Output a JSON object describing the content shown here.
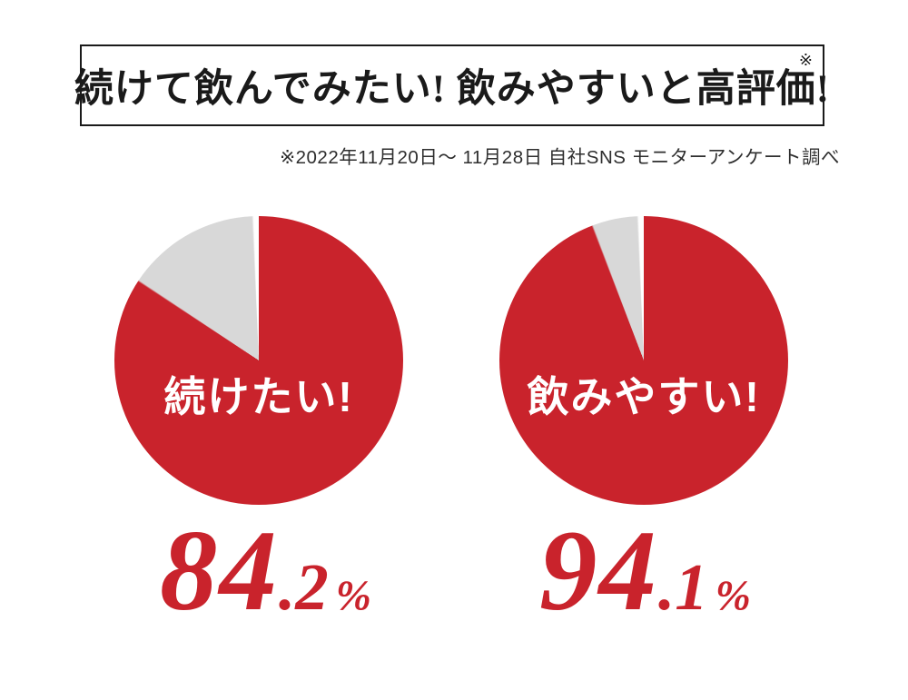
{
  "header": {
    "title": "続けて飲んでみたい! 飲みやすいと高評価!",
    "note_mark": "※",
    "subtitle": "※2022年11月20日〜 11月28日 自社SNS モニターアンケート調べ"
  },
  "colors": {
    "accent_red": "#c9232c",
    "pie_gray": "#d8d8d8",
    "ink": "#1a1a1a",
    "background": "#ffffff"
  },
  "chart_data": [
    {
      "type": "pie",
      "title": "続けたい!",
      "center_label": "続けたい!",
      "value_pct": 84.2,
      "value_text": {
        "integer": "84",
        "decimal": ".2",
        "unit": "%"
      },
      "start": "top",
      "direction": "clockwise",
      "slices": [
        {
          "name": "続けたい!",
          "pct": 84.2,
          "color": "#c9232c"
        },
        {
          "name": "remainder",
          "pct": 15.8,
          "color": "#d8d8d8"
        }
      ]
    },
    {
      "type": "pie",
      "title": "飲みやすい!",
      "center_label": "飲みやすい!",
      "value_pct": 94.1,
      "value_text": {
        "integer": "94",
        "decimal": ".1",
        "unit": "%"
      },
      "start": "top",
      "direction": "clockwise",
      "slices": [
        {
          "name": "飲みやすい!",
          "pct": 94.1,
          "color": "#c9232c"
        },
        {
          "name": "remainder",
          "pct": 5.9,
          "color": "#d8d8d8"
        }
      ]
    }
  ]
}
